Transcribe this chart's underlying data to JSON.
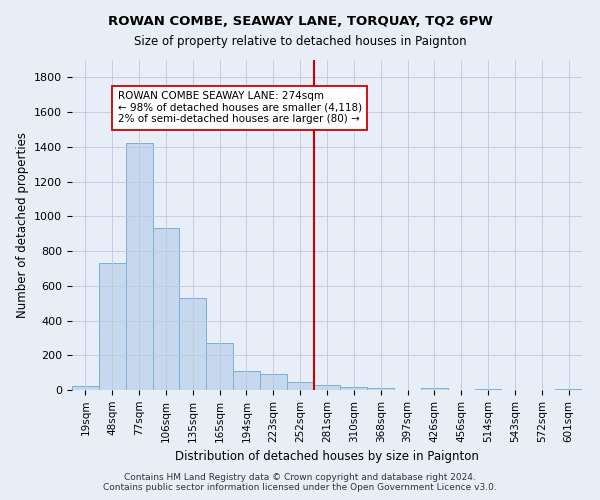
{
  "title": "ROWAN COMBE, SEAWAY LANE, TORQUAY, TQ2 6PW",
  "subtitle": "Size of property relative to detached houses in Paignton",
  "xlabel": "Distribution of detached houses by size in Paignton",
  "ylabel": "Number of detached properties",
  "categories": [
    "19sqm",
    "48sqm",
    "77sqm",
    "106sqm",
    "135sqm",
    "165sqm",
    "194sqm",
    "223sqm",
    "252sqm",
    "281sqm",
    "310sqm",
    "368sqm",
    "397sqm",
    "426sqm",
    "456sqm",
    "514sqm",
    "543sqm",
    "572sqm",
    "601sqm"
  ],
  "values": [
    25,
    730,
    1420,
    935,
    530,
    270,
    110,
    95,
    45,
    30,
    20,
    10,
    0,
    10,
    0,
    8,
    0,
    0,
    8
  ],
  "bar_color": "#c5d8ee",
  "bar_edge_color": "#7bafd4",
  "red_line_index": 9,
  "highlight_color": "#cc0000",
  "annotation_line1": "ROWAN COMBE SEAWAY LANE: 274sqm",
  "annotation_line2": "← 98% of detached houses are smaller (4,118)",
  "annotation_line3": "2% of semi-detached houses are larger (80) →",
  "annotation_box_color": "#ffffff",
  "annotation_border_color": "#cc0000",
  "ylim": [
    0,
    1900
  ],
  "yticks": [
    0,
    200,
    400,
    600,
    800,
    1000,
    1200,
    1400,
    1600,
    1800
  ],
  "grid_color": "#c0c8d8",
  "background_color": "#e8eef8",
  "plot_background_color": "#e8eef8",
  "footer1": "Contains HM Land Registry data © Crown copyright and database right 2024.",
  "footer2": "Contains public sector information licensed under the Open Government Licence v3.0."
}
